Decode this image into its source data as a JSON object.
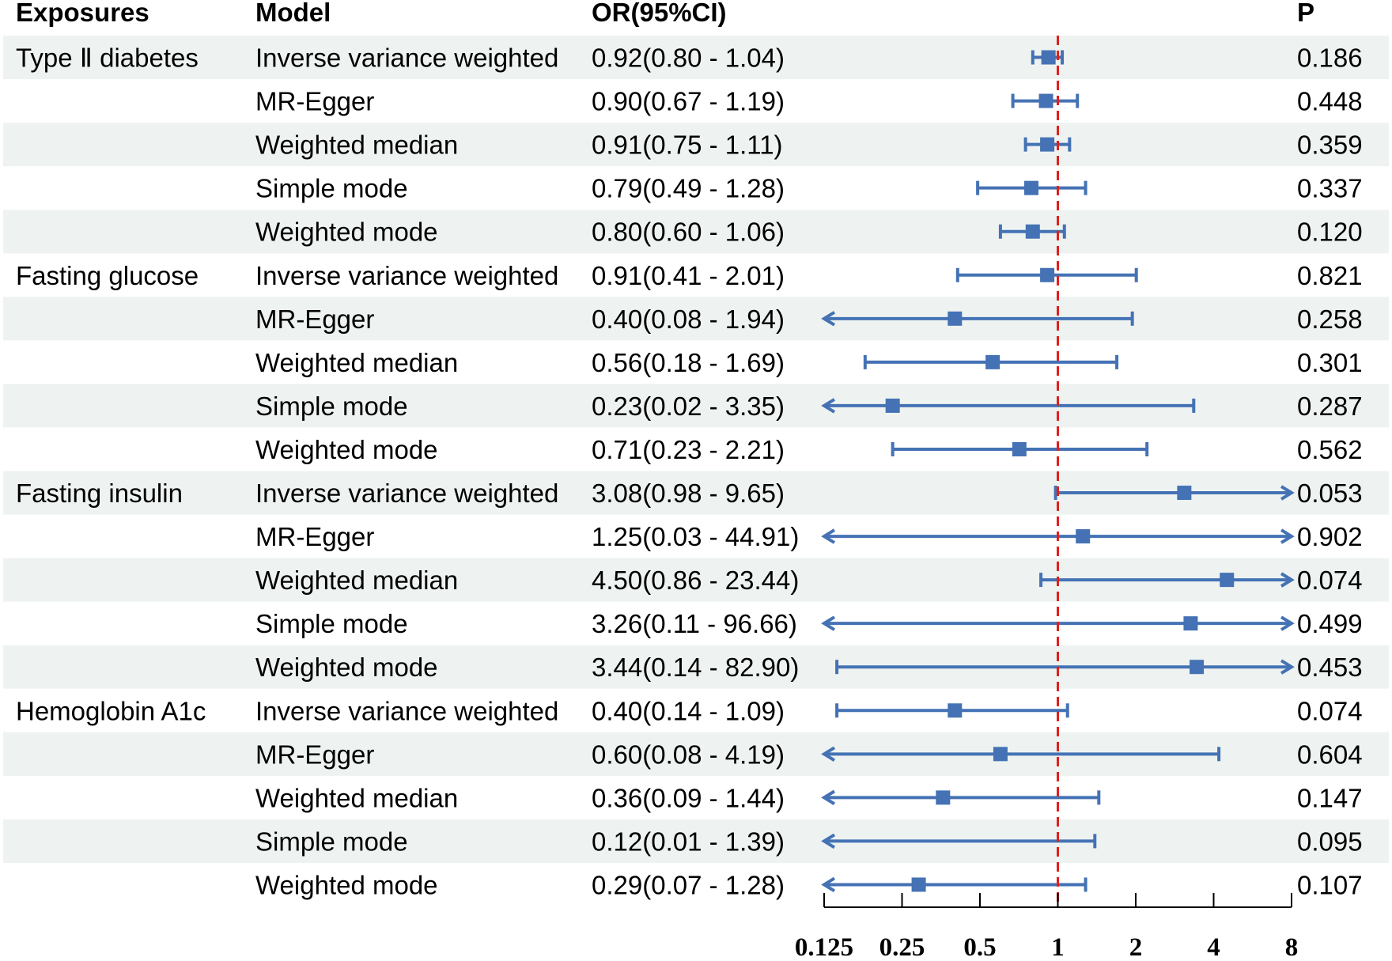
{
  "chart_data": {
    "type": "forest",
    "headers": {
      "exposure": "Exposures",
      "model": "Model",
      "or": "OR(95%CI)",
      "p": "P"
    },
    "x_scale": "log2",
    "xlim": [
      0.125,
      8
    ],
    "reference_line": 1,
    "ticks": [
      {
        "value": 0.125,
        "label": "0.125"
      },
      {
        "value": 0.25,
        "label": "0.25"
      },
      {
        "value": 0.5,
        "label": "0.5"
      },
      {
        "value": 1,
        "label": "1"
      },
      {
        "value": 2,
        "label": "2"
      },
      {
        "value": 4,
        "label": "4"
      },
      {
        "value": 8,
        "label": "8"
      }
    ],
    "colors": {
      "marker": "#4472b4",
      "reference_line": "#e0201c",
      "stripe": "#eef3f1",
      "axis": "#000000"
    },
    "rows": [
      {
        "exposure": "Type Ⅱ diabetes",
        "model": "Inverse variance weighted",
        "or_text": "0.92(0.80 - 1.04)",
        "p": "0.186",
        "or": 0.92,
        "lo": 0.8,
        "hi": 1.04
      },
      {
        "exposure": "",
        "model": "MR-Egger",
        "or_text": "0.90(0.67 - 1.19)",
        "p": "0.448",
        "or": 0.9,
        "lo": 0.67,
        "hi": 1.19
      },
      {
        "exposure": "",
        "model": "Weighted median",
        "or_text": "0.91(0.75 - 1.11)",
        "p": "0.359",
        "or": 0.91,
        "lo": 0.75,
        "hi": 1.11
      },
      {
        "exposure": "",
        "model": "Simple mode",
        "or_text": "0.79(0.49 - 1.28)",
        "p": "0.337",
        "or": 0.79,
        "lo": 0.49,
        "hi": 1.28
      },
      {
        "exposure": "",
        "model": "Weighted mode",
        "or_text": "0.80(0.60 - 1.06)",
        "p": "0.120",
        "or": 0.8,
        "lo": 0.6,
        "hi": 1.06
      },
      {
        "exposure": "Fasting glucose",
        "model": "Inverse variance weighted",
        "or_text": "0.91(0.41 - 2.01)",
        "p": "0.821",
        "or": 0.91,
        "lo": 0.41,
        "hi": 2.01
      },
      {
        "exposure": "",
        "model": "MR-Egger",
        "or_text": "0.40(0.08 - 1.94)",
        "p": "0.258",
        "or": 0.4,
        "lo": 0.08,
        "hi": 1.94
      },
      {
        "exposure": "",
        "model": "Weighted median",
        "or_text": "0.56(0.18 - 1.69)",
        "p": "0.301",
        "or": 0.56,
        "lo": 0.18,
        "hi": 1.69
      },
      {
        "exposure": "",
        "model": "Simple mode",
        "or_text": "0.23(0.02 - 3.35)",
        "p": "0.287",
        "or": 0.23,
        "lo": 0.02,
        "hi": 3.35
      },
      {
        "exposure": "",
        "model": "Weighted mode",
        "or_text": "0.71(0.23 - 2.21)",
        "p": "0.562",
        "or": 0.71,
        "lo": 0.23,
        "hi": 2.21
      },
      {
        "exposure": "Fasting insulin",
        "model": "Inverse variance weighted",
        "or_text": "3.08(0.98 - 9.65)",
        "p": "0.053",
        "or": 3.08,
        "lo": 0.98,
        "hi": 9.65
      },
      {
        "exposure": "",
        "model": "MR-Egger",
        "or_text": "1.25(0.03 - 44.91)",
        "p": "0.902",
        "or": 1.25,
        "lo": 0.03,
        "hi": 44.91
      },
      {
        "exposure": "",
        "model": "Weighted median",
        "or_text": "4.50(0.86 - 23.44)",
        "p": "0.074",
        "or": 4.5,
        "lo": 0.86,
        "hi": 23.44
      },
      {
        "exposure": "",
        "model": "Simple mode",
        "or_text": "3.26(0.11 - 96.66)",
        "p": "0.499",
        "or": 3.26,
        "lo": 0.11,
        "hi": 96.66
      },
      {
        "exposure": "",
        "model": "Weighted mode",
        "or_text": "3.44(0.14 - 82.90)",
        "p": "0.453",
        "or": 3.44,
        "lo": 0.14,
        "hi": 82.9
      },
      {
        "exposure": "Hemoglobin A1c",
        "model": "Inverse variance weighted",
        "or_text": "0.40(0.14 - 1.09)",
        "p": "0.074",
        "or": 0.4,
        "lo": 0.14,
        "hi": 1.09
      },
      {
        "exposure": "",
        "model": "MR-Egger",
        "or_text": "0.60(0.08 - 4.19)",
        "p": "0.604",
        "or": 0.6,
        "lo": 0.08,
        "hi": 4.19
      },
      {
        "exposure": "",
        "model": "Weighted median",
        "or_text": "0.36(0.09 - 1.44)",
        "p": "0.147",
        "or": 0.36,
        "lo": 0.09,
        "hi": 1.44
      },
      {
        "exposure": "",
        "model": "Simple mode",
        "or_text": "0.12(0.01 - 1.39)",
        "p": "0.095",
        "or": 0.12,
        "lo": 0.01,
        "hi": 1.39
      },
      {
        "exposure": "",
        "model": "Weighted mode",
        "or_text": "0.29(0.07 - 1.28)",
        "p": "0.107",
        "or": 0.29,
        "lo": 0.07,
        "hi": 1.28
      }
    ]
  }
}
